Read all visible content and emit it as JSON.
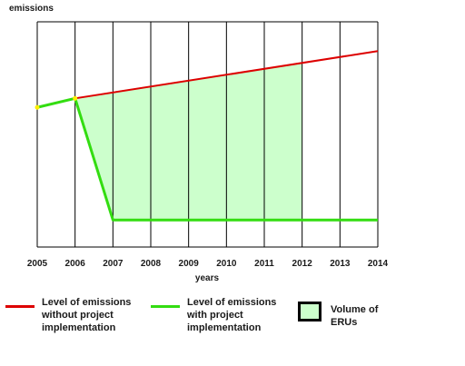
{
  "chart_data": {
    "type": "line",
    "title": "",
    "ylabel": "emissions",
    "xlabel": "years",
    "x": [
      2005,
      2006,
      2007,
      2008,
      2009,
      2010,
      2011,
      2012,
      2013,
      2014
    ],
    "xlim": [
      2005,
      2014
    ],
    "ylim": [
      0,
      100
    ],
    "grid": {
      "vertical": true,
      "horizontal": false
    },
    "series": [
      {
        "name": "Level of emissions without project implementation",
        "color": "#dd0000",
        "x": [
          2006,
          2014
        ],
        "y": [
          66,
          87
        ]
      },
      {
        "name": "Level of emissions with project implementation",
        "color": "#33dd11",
        "x": [
          2005,
          2006,
          2007,
          2014
        ],
        "y": [
          62,
          66,
          12,
          12
        ]
      }
    ],
    "area": {
      "name": "Volume of ERUs",
      "color": "#ccffcc",
      "border": "#000000",
      "x": [
        2006,
        2007,
        2012
      ],
      "upper": [
        66,
        69,
        82
      ],
      "lower": [
        66,
        12,
        12
      ]
    },
    "markers": {
      "color": "#ffee00",
      "x": [
        2005,
        2006
      ],
      "y": [
        62,
        66
      ]
    },
    "legend_position": "bottom"
  }
}
